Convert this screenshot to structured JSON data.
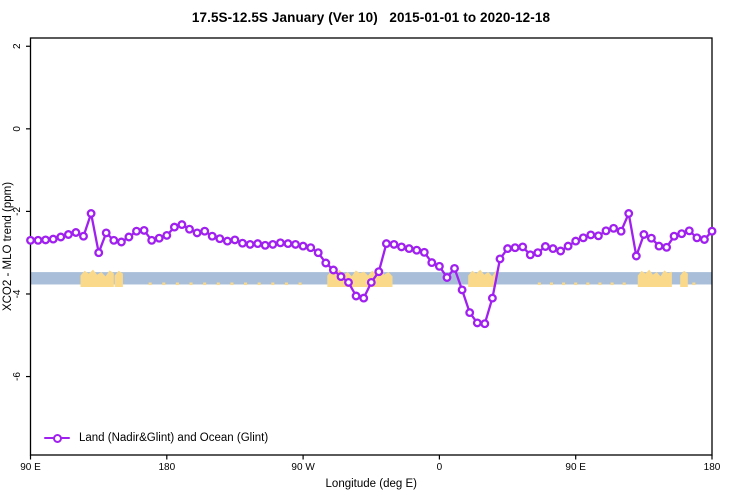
{
  "title": "17.5S-12.5S January (Ver 10)   2015-01-01 to 2020-12-18",
  "chart_data": {
    "type": "line",
    "title": "17.5S-12.5S January (Ver 10)   2015-01-01 to 2020-12-18",
    "xlabel": "Longitude (deg E)",
    "ylabel": "XCO2 - MLO trend (ppm)",
    "x_axis": {
      "unit": "degrees east, wrapped 90E through 180 to 180",
      "range_deg": [
        90,
        540
      ],
      "ticks": [
        {
          "deg": 90,
          "label": "90 E"
        },
        {
          "deg": 180,
          "label": "180"
        },
        {
          "deg": 270,
          "label": "90 W"
        },
        {
          "deg": 360,
          "label": "0"
        },
        {
          "deg": 450,
          "label": "90 E"
        },
        {
          "deg": 540,
          "label": "180"
        }
      ]
    },
    "y_axis": {
      "range": [
        -7.9,
        2.2
      ],
      "ticks": [
        2,
        0,
        -2,
        -4,
        -6
      ],
      "tick_labels": [
        "2",
        "0",
        "-2",
        "-4",
        "-6"
      ]
    },
    "grid": false,
    "legend_position": "bottom-left",
    "series": [
      {
        "name": "Land (Nadir&Glint) and Ocean (Glint)",
        "color": "#A020F0",
        "marker": "open-circle",
        "marker_fill": "#ffffff",
        "x_start_deg": 90,
        "x_step_deg": 5,
        "values": [
          -2.7,
          -2.7,
          -2.69,
          -2.67,
          -2.62,
          -2.56,
          -2.51,
          -2.6,
          -2.05,
          -3.0,
          -2.52,
          -2.7,
          -2.74,
          -2.62,
          -2.48,
          -2.46,
          -2.7,
          -2.65,
          -2.58,
          -2.38,
          -2.32,
          -2.43,
          -2.52,
          -2.48,
          -2.6,
          -2.66,
          -2.72,
          -2.69,
          -2.77,
          -2.8,
          -2.78,
          -2.82,
          -2.8,
          -2.76,
          -2.78,
          -2.8,
          -2.84,
          -2.88,
          -3.0,
          -3.25,
          -3.42,
          -3.58,
          -3.72,
          -4.05,
          -4.1,
          -3.72,
          -3.46,
          -2.78,
          -2.8,
          -2.86,
          -2.9,
          -2.94,
          -2.99,
          -3.24,
          -3.33,
          -3.6,
          -3.38,
          -3.9,
          -4.45,
          -4.7,
          -4.72,
          -4.1,
          -3.15,
          -2.9,
          -2.88,
          -2.86,
          -3.05,
          -3.0,
          -2.85,
          -2.9,
          -2.96,
          -2.84,
          -2.72,
          -2.64,
          -2.57,
          -2.59,
          -2.47,
          -2.41,
          -2.48,
          -2.05,
          -3.08,
          -2.56,
          -2.65,
          -2.84,
          -2.87,
          -2.6,
          -2.54,
          -2.47,
          -2.64,
          -2.68,
          -2.48
        ]
      }
    ],
    "reference_band": {
      "meaning": "horizontal shaded band",
      "color": "#A9BFD9",
      "y_from": -3.47,
      "y_to": -3.77
    },
    "land_patches": {
      "color": "#FBD98B",
      "ranges_deg": [
        {
          "from": 123,
          "to": 145
        },
        {
          "from": 145.5,
          "to": 151
        },
        {
          "from": 286,
          "to": 329
        },
        {
          "from": 379,
          "to": 397.5
        },
        {
          "from": 491,
          "to": 513.5
        },
        {
          "from": 519,
          "to": 524
        }
      ],
      "speck_marks_deg": [
        169,
        178,
        187,
        196,
        205,
        214,
        223,
        232,
        241,
        250,
        259,
        268,
        426,
        434,
        442,
        450,
        458,
        466,
        474,
        482,
        528
      ]
    },
    "legend_label": "Land (Nadir&Glint) and Ocean (Glint)"
  },
  "colors": {
    "series": "#A020F0",
    "band": "#A9BFD9",
    "land": "#FBD98B",
    "axis": "#000000"
  }
}
